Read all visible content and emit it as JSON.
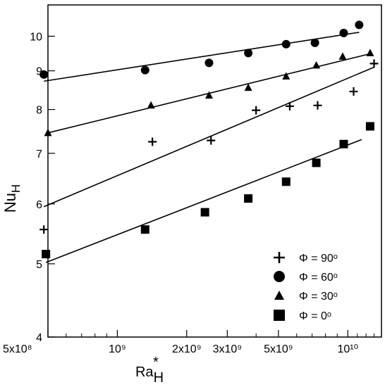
{
  "chart_data": {
    "type": "scatter",
    "xscale": "log",
    "yscale": "log",
    "xlim": [
      500000000.0,
      14000000000.0
    ],
    "ylim": [
      4,
      11
    ],
    "xticks": [
      {
        "value": 500000000.0,
        "label": "5x10⁸"
      },
      {
        "value": 1000000000.0,
        "label": "10⁹"
      },
      {
        "value": 2000000000.0,
        "label": "2x10⁹"
      },
      {
        "value": 3000000000.0,
        "label": "3x10⁹"
      },
      {
        "value": 5000000000.0,
        "label": "5x10⁹"
      },
      {
        "value": 10000000000.0,
        "label": "10¹⁰"
      }
    ],
    "yticks": [
      {
        "value": 4,
        "label": "4"
      },
      {
        "value": 5,
        "label": "5"
      },
      {
        "value": 6,
        "label": "6"
      },
      {
        "value": 7,
        "label": "7"
      },
      {
        "value": 8,
        "label": "8"
      },
      {
        "value": 9,
        "label": "9"
      },
      {
        "value": 10,
        "label": "10"
      }
    ],
    "xlabel": {
      "main": "Ra",
      "sup": "*",
      "sub": "H"
    },
    "ylabel": {
      "main": "Nu",
      "sub": "H"
    },
    "grid": false,
    "legend_position": "bottom-right",
    "series": [
      {
        "name": "Φ = 90ᵒ",
        "marker": "plus",
        "points": [
          [
            480000000.0,
            5.55
          ],
          [
            1420000000.0,
            7.25
          ],
          [
            2550000000.0,
            7.28
          ],
          [
            4000000000.0,
            7.98
          ],
          [
            5600000000.0,
            8.08
          ],
          [
            7400000000.0,
            8.1
          ],
          [
            10600000000.0,
            8.45
          ],
          [
            13000000000.0,
            9.2
          ]
        ],
        "fit": [
          [
            480000000.0,
            5.95
          ],
          [
            13000000000.0,
            9.1
          ]
        ]
      },
      {
        "name": "Φ = 60ᵒ",
        "marker": "circle",
        "points": [
          [
            480000000.0,
            8.9
          ],
          [
            1320000000.0,
            9.02
          ],
          [
            2500000000.0,
            9.22
          ],
          [
            3700000000.0,
            9.5
          ],
          [
            5400000000.0,
            9.76
          ],
          [
            7200000000.0,
            9.8
          ],
          [
            9600000000.0,
            10.1
          ],
          [
            11200000000.0,
            10.35
          ]
        ],
        "fit": [
          [
            480000000.0,
            8.72
          ],
          [
            11200000000.0,
            10.12
          ]
        ]
      },
      {
        "name": "Φ = 30ᵒ",
        "marker": "triangle",
        "points": [
          [
            500000000.0,
            7.45
          ],
          [
            1400000000.0,
            8.1
          ],
          [
            2500000000.0,
            8.35
          ],
          [
            3700000000.0,
            8.55
          ],
          [
            5400000000.0,
            8.85
          ],
          [
            7300000000.0,
            9.15
          ],
          [
            9500000000.0,
            9.4
          ],
          [
            12500000000.0,
            9.5
          ]
        ],
        "fit": [
          [
            500000000.0,
            7.45
          ],
          [
            12500000000.0,
            9.48
          ]
        ]
      },
      {
        "name": "Φ = 0ᵒ",
        "marker": "square",
        "points": [
          [
            490000000.0,
            5.15
          ],
          [
            1320000000.0,
            5.55
          ],
          [
            2400000000.0,
            5.85
          ],
          [
            3700000000.0,
            6.1
          ],
          [
            5400000000.0,
            6.42
          ],
          [
            7300000000.0,
            6.8
          ],
          [
            9600000000.0,
            7.2
          ],
          [
            12500000000.0,
            7.6
          ]
        ],
        "fit": [
          [
            490000000.0,
            5.02
          ],
          [
            11500000000.0,
            7.3
          ]
        ]
      }
    ]
  }
}
